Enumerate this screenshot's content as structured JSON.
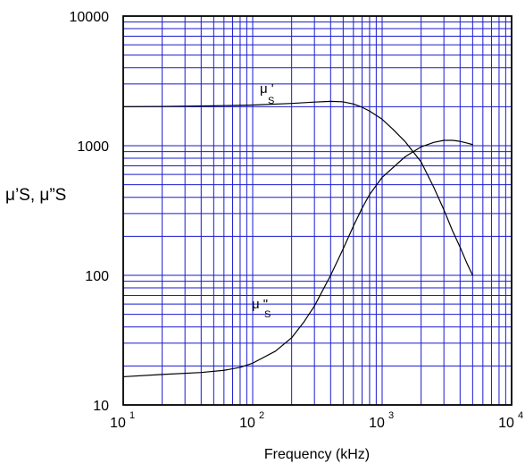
{
  "chart_data": {
    "type": "line",
    "title": "",
    "xlabel": "Frequency (kHz)",
    "ylabel": "μ’S, μ”S",
    "xscale": "log",
    "yscale": "log",
    "xlim": [
      10,
      10000
    ],
    "ylim": [
      10,
      10000
    ],
    "grid": true,
    "grid_color": "#1a1ad0",
    "line_color": "#000000",
    "x_ticks": [
      {
        "value": 10,
        "base": "10",
        "exp": "1"
      },
      {
        "value": 100,
        "base": "10",
        "exp": "2"
      },
      {
        "value": 1000,
        "base": "10",
        "exp": "3"
      },
      {
        "value": 10000,
        "base": "10",
        "exp": "4"
      }
    ],
    "y_ticks": [
      {
        "value": 10,
        "label": "10"
      },
      {
        "value": 100,
        "label": "100"
      },
      {
        "value": 1000,
        "label": "1000"
      },
      {
        "value": 10000,
        "label": "10000"
      }
    ],
    "series": [
      {
        "label_main": "μ '",
        "label_sub": "S",
        "x": [
          10,
          20,
          50,
          100,
          200,
          300,
          400,
          500,
          600,
          700,
          800,
          1000,
          1200,
          1500,
          2000,
          2500,
          3000,
          3500,
          4000,
          4500,
          5000
        ],
        "y": [
          2000,
          2010,
          2030,
          2060,
          2120,
          2170,
          2200,
          2180,
          2100,
          1980,
          1850,
          1600,
          1350,
          1080,
          750,
          480,
          320,
          220,
          165,
          125,
          100
        ]
      },
      {
        "label_main": "μ \"",
        "label_sub": "S",
        "x": [
          10,
          20,
          40,
          60,
          80,
          100,
          150,
          200,
          250,
          300,
          400,
          500,
          600,
          700,
          800,
          1000,
          1500,
          2000,
          2500,
          3000,
          3500,
          4000,
          4500,
          5000
        ],
        "y": [
          16.5,
          17.2,
          17.8,
          18.5,
          19.5,
          21,
          26,
          33,
          44,
          58,
          100,
          160,
          240,
          330,
          420,
          570,
          820,
          980,
          1060,
          1100,
          1100,
          1080,
          1050,
          1020
        ]
      }
    ]
  }
}
